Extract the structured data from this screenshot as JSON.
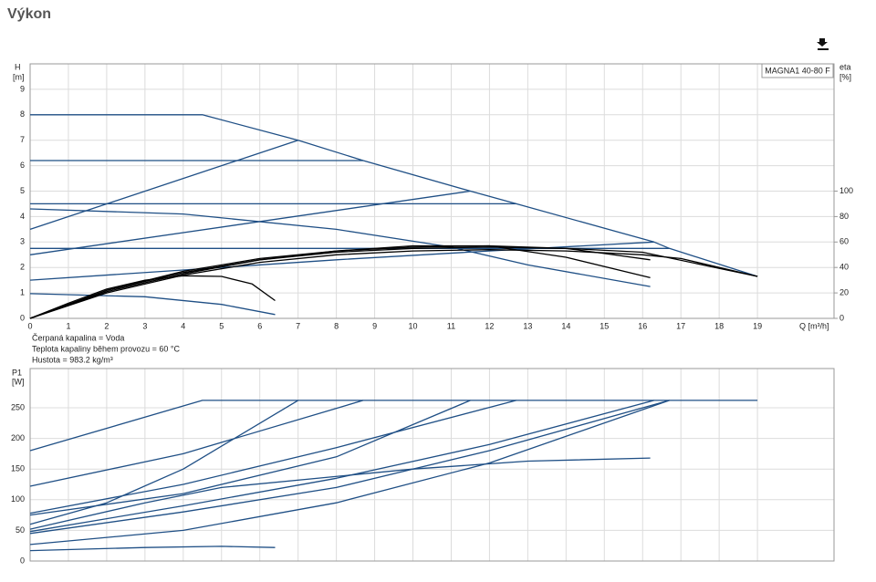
{
  "header": {
    "title": "Výkon"
  },
  "legend": "MAGNA1 40-80 F",
  "notes": [
    "Čerpaná kapalina = Voda",
    "Teplota kapaliny během provozu = 60 °C",
    "Hustota = 983.2 kg/m³"
  ],
  "chart_data": [
    {
      "type": "line",
      "y_label": "H",
      "y_unit": "[m]",
      "y2_label": "eta",
      "y2_unit": "[%]",
      "x_label": "Q [m³/h]",
      "xlim": [
        0,
        21
      ],
      "xticks": [
        0,
        1,
        2,
        3,
        4,
        5,
        6,
        7,
        8,
        9,
        10,
        11,
        12,
        13,
        14,
        15,
        16,
        17,
        18,
        19
      ],
      "ylim": [
        0,
        10
      ],
      "yticks": [
        0,
        1,
        2,
        3,
        4,
        5,
        6,
        7,
        8,
        9
      ],
      "y2lim": [
        0,
        200
      ],
      "y2ticks": [
        0,
        20,
        40,
        60,
        80,
        100
      ],
      "grid": true,
      "show_xtick_labels": true,
      "series": [
        {
          "color": "#1f4f85",
          "x": [
            0,
            4.5,
            7,
            8.7,
            11.5,
            12.7,
            16.3,
            16.7,
            19
          ],
          "values": [
            8,
            8,
            7,
            6.2,
            5,
            4.5,
            3,
            2.75,
            1.65
          ]
        },
        {
          "color": "#1f4f85",
          "x": [
            0,
            8.7
          ],
          "values": [
            6.2,
            6.2
          ]
        },
        {
          "color": "#1f4f85",
          "x": [
            0,
            12.7
          ],
          "values": [
            4.5,
            4.5
          ]
        },
        {
          "color": "#1f4f85",
          "x": [
            0,
            16.7
          ],
          "values": [
            2.75,
            2.75
          ]
        },
        {
          "color": "#1f4f85",
          "x": [
            0,
            7
          ],
          "values": [
            3.5,
            7
          ]
        },
        {
          "color": "#1f4f85",
          "x": [
            0,
            11.5
          ],
          "values": [
            2.5,
            5
          ]
        },
        {
          "color": "#1f4f85",
          "x": [
            0,
            4,
            8,
            12,
            16.3
          ],
          "values": [
            1.5,
            1.9,
            2.3,
            2.65,
            3
          ]
        },
        {
          "color": "#1f4f85",
          "x": [
            0,
            4,
            8,
            11,
            13,
            16.2
          ],
          "values": [
            4.3,
            4.1,
            3.5,
            2.8,
            2.1,
            1.25
          ]
        },
        {
          "color": "#1f4f85",
          "x": [
            0,
            3,
            5,
            6.4
          ],
          "values": [
            0.97,
            0.85,
            0.55,
            0.15
          ]
        },
        {
          "color": "#000000",
          "axis": "y2",
          "x": [
            0,
            1,
            2,
            3,
            4,
            5,
            5.8,
            6.4
          ],
          "values": [
            0,
            12,
            23,
            30,
            33.5,
            33,
            27,
            14
          ]
        },
        {
          "color": "#000000",
          "axis": "y2",
          "x": [
            0,
            2,
            4,
            6,
            8,
            10,
            12,
            14,
            16.2
          ],
          "values": [
            0,
            22,
            36,
            46,
            53,
            57,
            57,
            48,
            32
          ]
        },
        {
          "color": "#000000",
          "axis": "y2",
          "x": [
            0,
            2,
            4,
            6,
            8,
            10,
            12,
            14,
            16,
            19
          ],
          "values": [
            0,
            22,
            37,
            47,
            53,
            56,
            57,
            55,
            52,
            33
          ]
        },
        {
          "color": "#000000",
          "axis": "y2",
          "x": [
            0,
            2,
            4,
            6,
            8,
            10,
            12,
            14,
            16,
            17,
            19
          ],
          "values": [
            0,
            20,
            34,
            44,
            50,
            53,
            54,
            53,
            50,
            47,
            33
          ]
        },
        {
          "color": "#000000",
          "axis": "y2",
          "x": [
            0,
            2,
            4,
            6,
            8,
            10,
            12,
            14,
            15,
            16.2
          ],
          "values": [
            0,
            21,
            35,
            46,
            52,
            55,
            56,
            55,
            51,
            46
          ]
        }
      ]
    },
    {
      "type": "line",
      "y_label": "P1",
      "y_unit": "[W]",
      "xlim": [
        0,
        21
      ],
      "xticks": [
        0,
        1,
        2,
        3,
        4,
        5,
        6,
        7,
        8,
        9,
        10,
        11,
        12,
        13,
        14,
        15,
        16,
        17,
        18,
        19
      ],
      "ylim": [
        0,
        314
      ],
      "yticks": [
        0,
        50,
        100,
        150,
        200,
        250
      ],
      "grid": true,
      "show_xtick_labels": false,
      "series": [
        {
          "color": "#1f4f85",
          "x": [
            0,
            4.5,
            19
          ],
          "values": [
            180,
            262,
            262
          ]
        },
        {
          "color": "#1f4f85",
          "x": [
            0,
            4,
            8.7
          ],
          "values": [
            122,
            175,
            262
          ]
        },
        {
          "color": "#1f4f85",
          "x": [
            0,
            2,
            4,
            7
          ],
          "values": [
            60,
            95,
            150,
            262
          ]
        },
        {
          "color": "#1f4f85",
          "x": [
            0,
            4,
            8,
            11.5
          ],
          "values": [
            75,
            110,
            170,
            262
          ]
        },
        {
          "color": "#1f4f85",
          "x": [
            0,
            4,
            8,
            12.7
          ],
          "values": [
            78,
            125,
            185,
            262
          ]
        },
        {
          "color": "#1f4f85",
          "x": [
            0,
            4,
            8,
            12,
            16.3
          ],
          "values": [
            48,
            90,
            135,
            190,
            262
          ]
        },
        {
          "color": "#1f4f85",
          "x": [
            0,
            4,
            8,
            12,
            16.7
          ],
          "values": [
            27,
            50,
            95,
            160,
            262
          ]
        },
        {
          "color": "#1f4f85",
          "x": [
            0,
            4,
            8,
            12,
            16.7
          ],
          "values": [
            45,
            80,
            120,
            180,
            262
          ]
        },
        {
          "color": "#1f4f85",
          "x": [
            0,
            3,
            5,
            10,
            13,
            16.2
          ],
          "values": [
            52,
            95,
            120,
            150,
            163,
            168
          ]
        },
        {
          "color": "#1f4f85",
          "x": [
            0,
            3,
            5,
            6.4
          ],
          "values": [
            17,
            22,
            24,
            22
          ]
        }
      ]
    }
  ]
}
